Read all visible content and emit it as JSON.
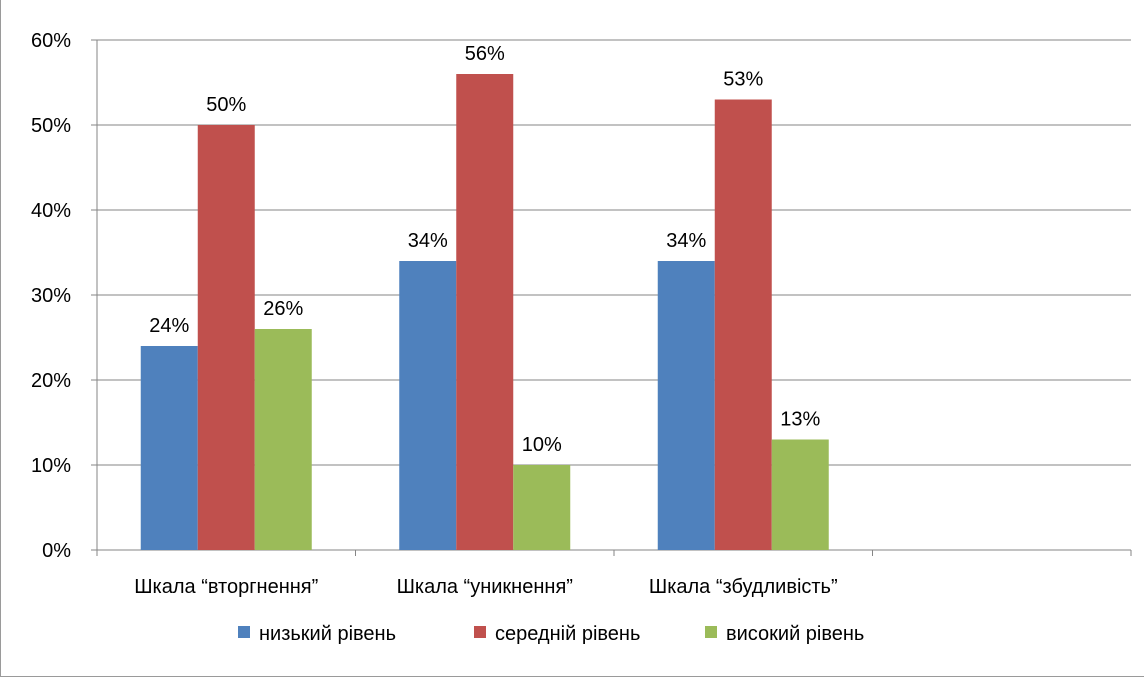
{
  "chart_data": {
    "type": "bar",
    "title": "",
    "xlabel": "",
    "ylabel": "",
    "categories": [
      "Шкала “вторгнення”",
      "Шкала “уникнення”",
      "Шкала “збудливість”",
      ""
    ],
    "series": [
      {
        "name": "низький рівень",
        "values": [
          24,
          34,
          34,
          null
        ],
        "labels": [
          "24%",
          "34%",
          "34%",
          ""
        ],
        "color": "#4f81bd"
      },
      {
        "name": "середній рівень",
        "values": [
          50,
          56,
          53,
          null
        ],
        "labels": [
          "50%",
          "56%",
          "53%",
          ""
        ],
        "color": "#c0504d"
      },
      {
        "name": "високий рівень",
        "values": [
          26,
          10,
          13,
          null
        ],
        "labels": [
          "26%",
          "10%",
          "13%",
          ""
        ],
        "color": "#9bbb59"
      }
    ],
    "ylim": [
      0,
      60
    ],
    "yticks": [
      "0%",
      "10%",
      "20%",
      "30%",
      "40%",
      "50%",
      "60%"
    ],
    "grid": true,
    "legend_position": "bottom"
  }
}
